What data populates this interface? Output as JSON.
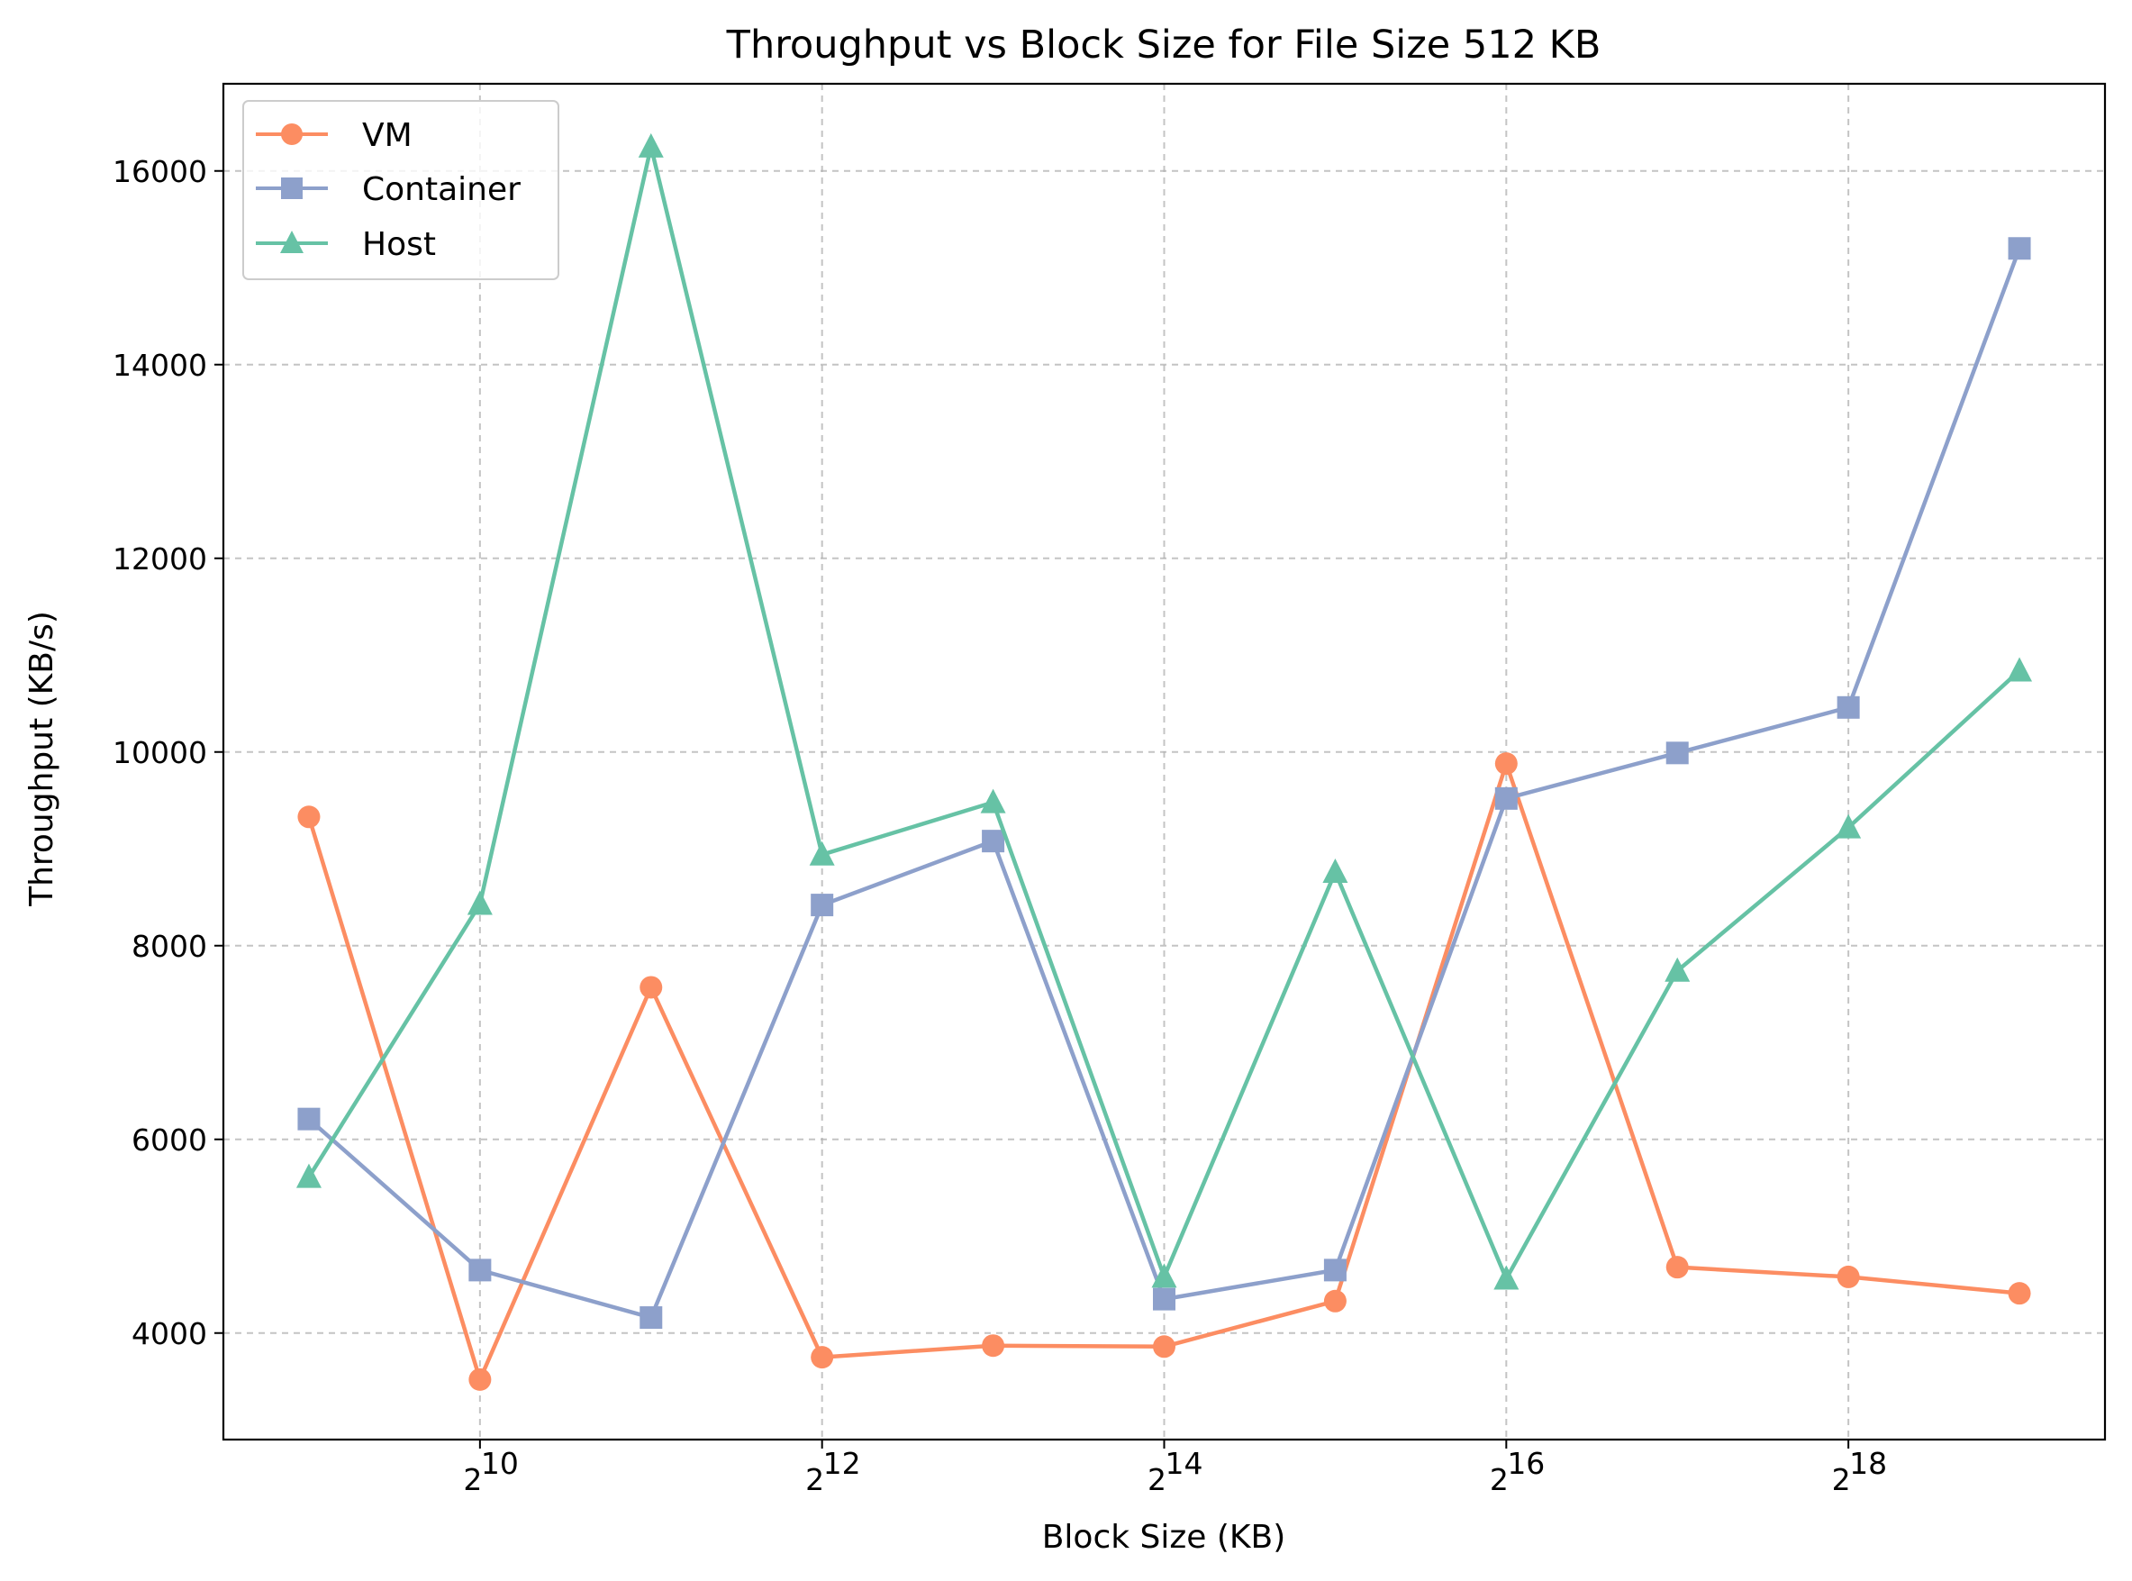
{
  "chart_data": {
    "type": "line",
    "title": "Throughput vs Block Size for File Size 512 KB",
    "xlabel": "Block Size (KB)",
    "ylabel": "Throughput (KB/s)",
    "x_scale": "log2",
    "x_exponents": [
      9,
      10,
      11,
      12,
      13,
      14,
      15,
      16,
      17,
      18,
      19
    ],
    "x": [
      512,
      1024,
      2048,
      4096,
      8192,
      16384,
      32768,
      65536,
      131072,
      262144,
      524288
    ],
    "x_tick_base": "2",
    "x_ticks": [
      {
        "exp": 10,
        "exp_label": "10"
      },
      {
        "exp": 12,
        "exp_label": "12"
      },
      {
        "exp": 14,
        "exp_label": "14"
      },
      {
        "exp": 16,
        "exp_label": "16"
      },
      {
        "exp": 18,
        "exp_label": "18"
      }
    ],
    "xlim_exponents": [
      8.5,
      19.5
    ],
    "ylim": [
      2900,
      16900
    ],
    "y_ticks": [
      "4000",
      "6000",
      "8000",
      "10000",
      "12000",
      "14000",
      "16000"
    ],
    "grid": true,
    "legend_position": "upper left",
    "series": [
      {
        "name": "VM",
        "color": "#fc8d62",
        "marker": "circle",
        "values": [
          9330,
          3520,
          7570,
          3750,
          3870,
          3860,
          4330,
          9880,
          4680,
          4580,
          4410
        ]
      },
      {
        "name": "Container",
        "color": "#8da0cb",
        "marker": "square",
        "values": [
          6210,
          4650,
          4160,
          8420,
          9080,
          4350,
          4650,
          9520,
          9990,
          10460,
          15200
        ]
      },
      {
        "name": "Host",
        "color": "#66c2a5",
        "marker": "triangle",
        "values": [
          5610,
          8430,
          16250,
          8940,
          9480,
          4580,
          8760,
          4560,
          7740,
          9220,
          10840
        ]
      }
    ]
  }
}
